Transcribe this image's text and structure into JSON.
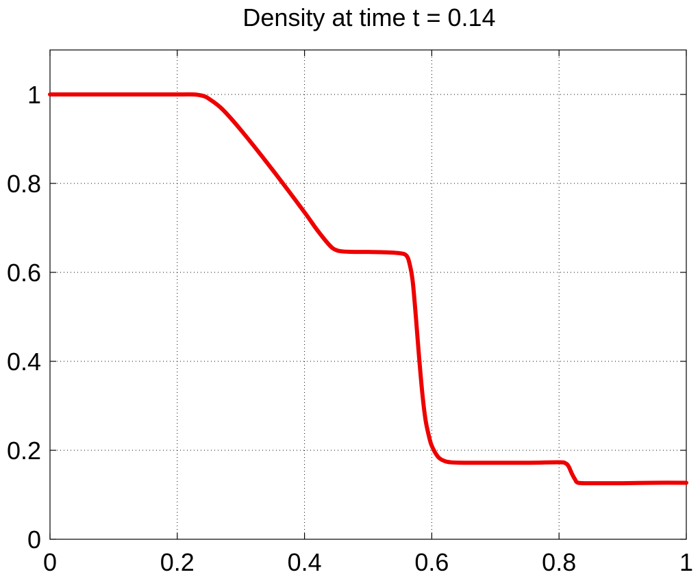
{
  "chart_data": {
    "type": "line",
    "title": "Density at time t = 0.14",
    "xlabel": "",
    "ylabel": "",
    "xlim": [
      0,
      1
    ],
    "ylim": [
      0,
      1.1
    ],
    "xticks": [
      0,
      0.2,
      0.4,
      0.6,
      0.8,
      1
    ],
    "xtick_labels": [
      "0",
      "0.2",
      "0.4",
      "0.6",
      "0.8",
      "1"
    ],
    "yticks": [
      0,
      0.2,
      0.4,
      0.6,
      0.8,
      1
    ],
    "ytick_labels": [
      "0",
      "0.2",
      "0.4",
      "0.6",
      "0.8",
      "1"
    ],
    "grid": true,
    "series": [
      {
        "color": "#ee0000",
        "x": [
          0.0,
          0.1,
          0.2,
          0.225,
          0.24,
          0.25,
          0.27,
          0.3,
          0.35,
          0.4,
          0.42,
          0.44,
          0.45,
          0.46,
          0.48,
          0.5,
          0.53,
          0.55,
          0.56,
          0.565,
          0.57,
          0.575,
          0.58,
          0.585,
          0.59,
          0.595,
          0.6,
          0.61,
          0.62,
          0.63,
          0.65,
          0.7,
          0.75,
          0.8,
          0.81,
          0.815,
          0.82,
          0.825,
          0.83,
          0.85,
          0.9,
          0.95,
          1.0
        ],
        "y": [
          1.0,
          1.0,
          1.0,
          1.0,
          0.997,
          0.99,
          0.968,
          0.92,
          0.83,
          0.735,
          0.695,
          0.66,
          0.65,
          0.647,
          0.646,
          0.646,
          0.645,
          0.643,
          0.638,
          0.62,
          0.58,
          0.5,
          0.41,
          0.33,
          0.27,
          0.235,
          0.21,
          0.185,
          0.176,
          0.173,
          0.172,
          0.172,
          0.172,
          0.173,
          0.171,
          0.164,
          0.148,
          0.135,
          0.127,
          0.126,
          0.126,
          0.127,
          0.127
        ]
      }
    ]
  }
}
